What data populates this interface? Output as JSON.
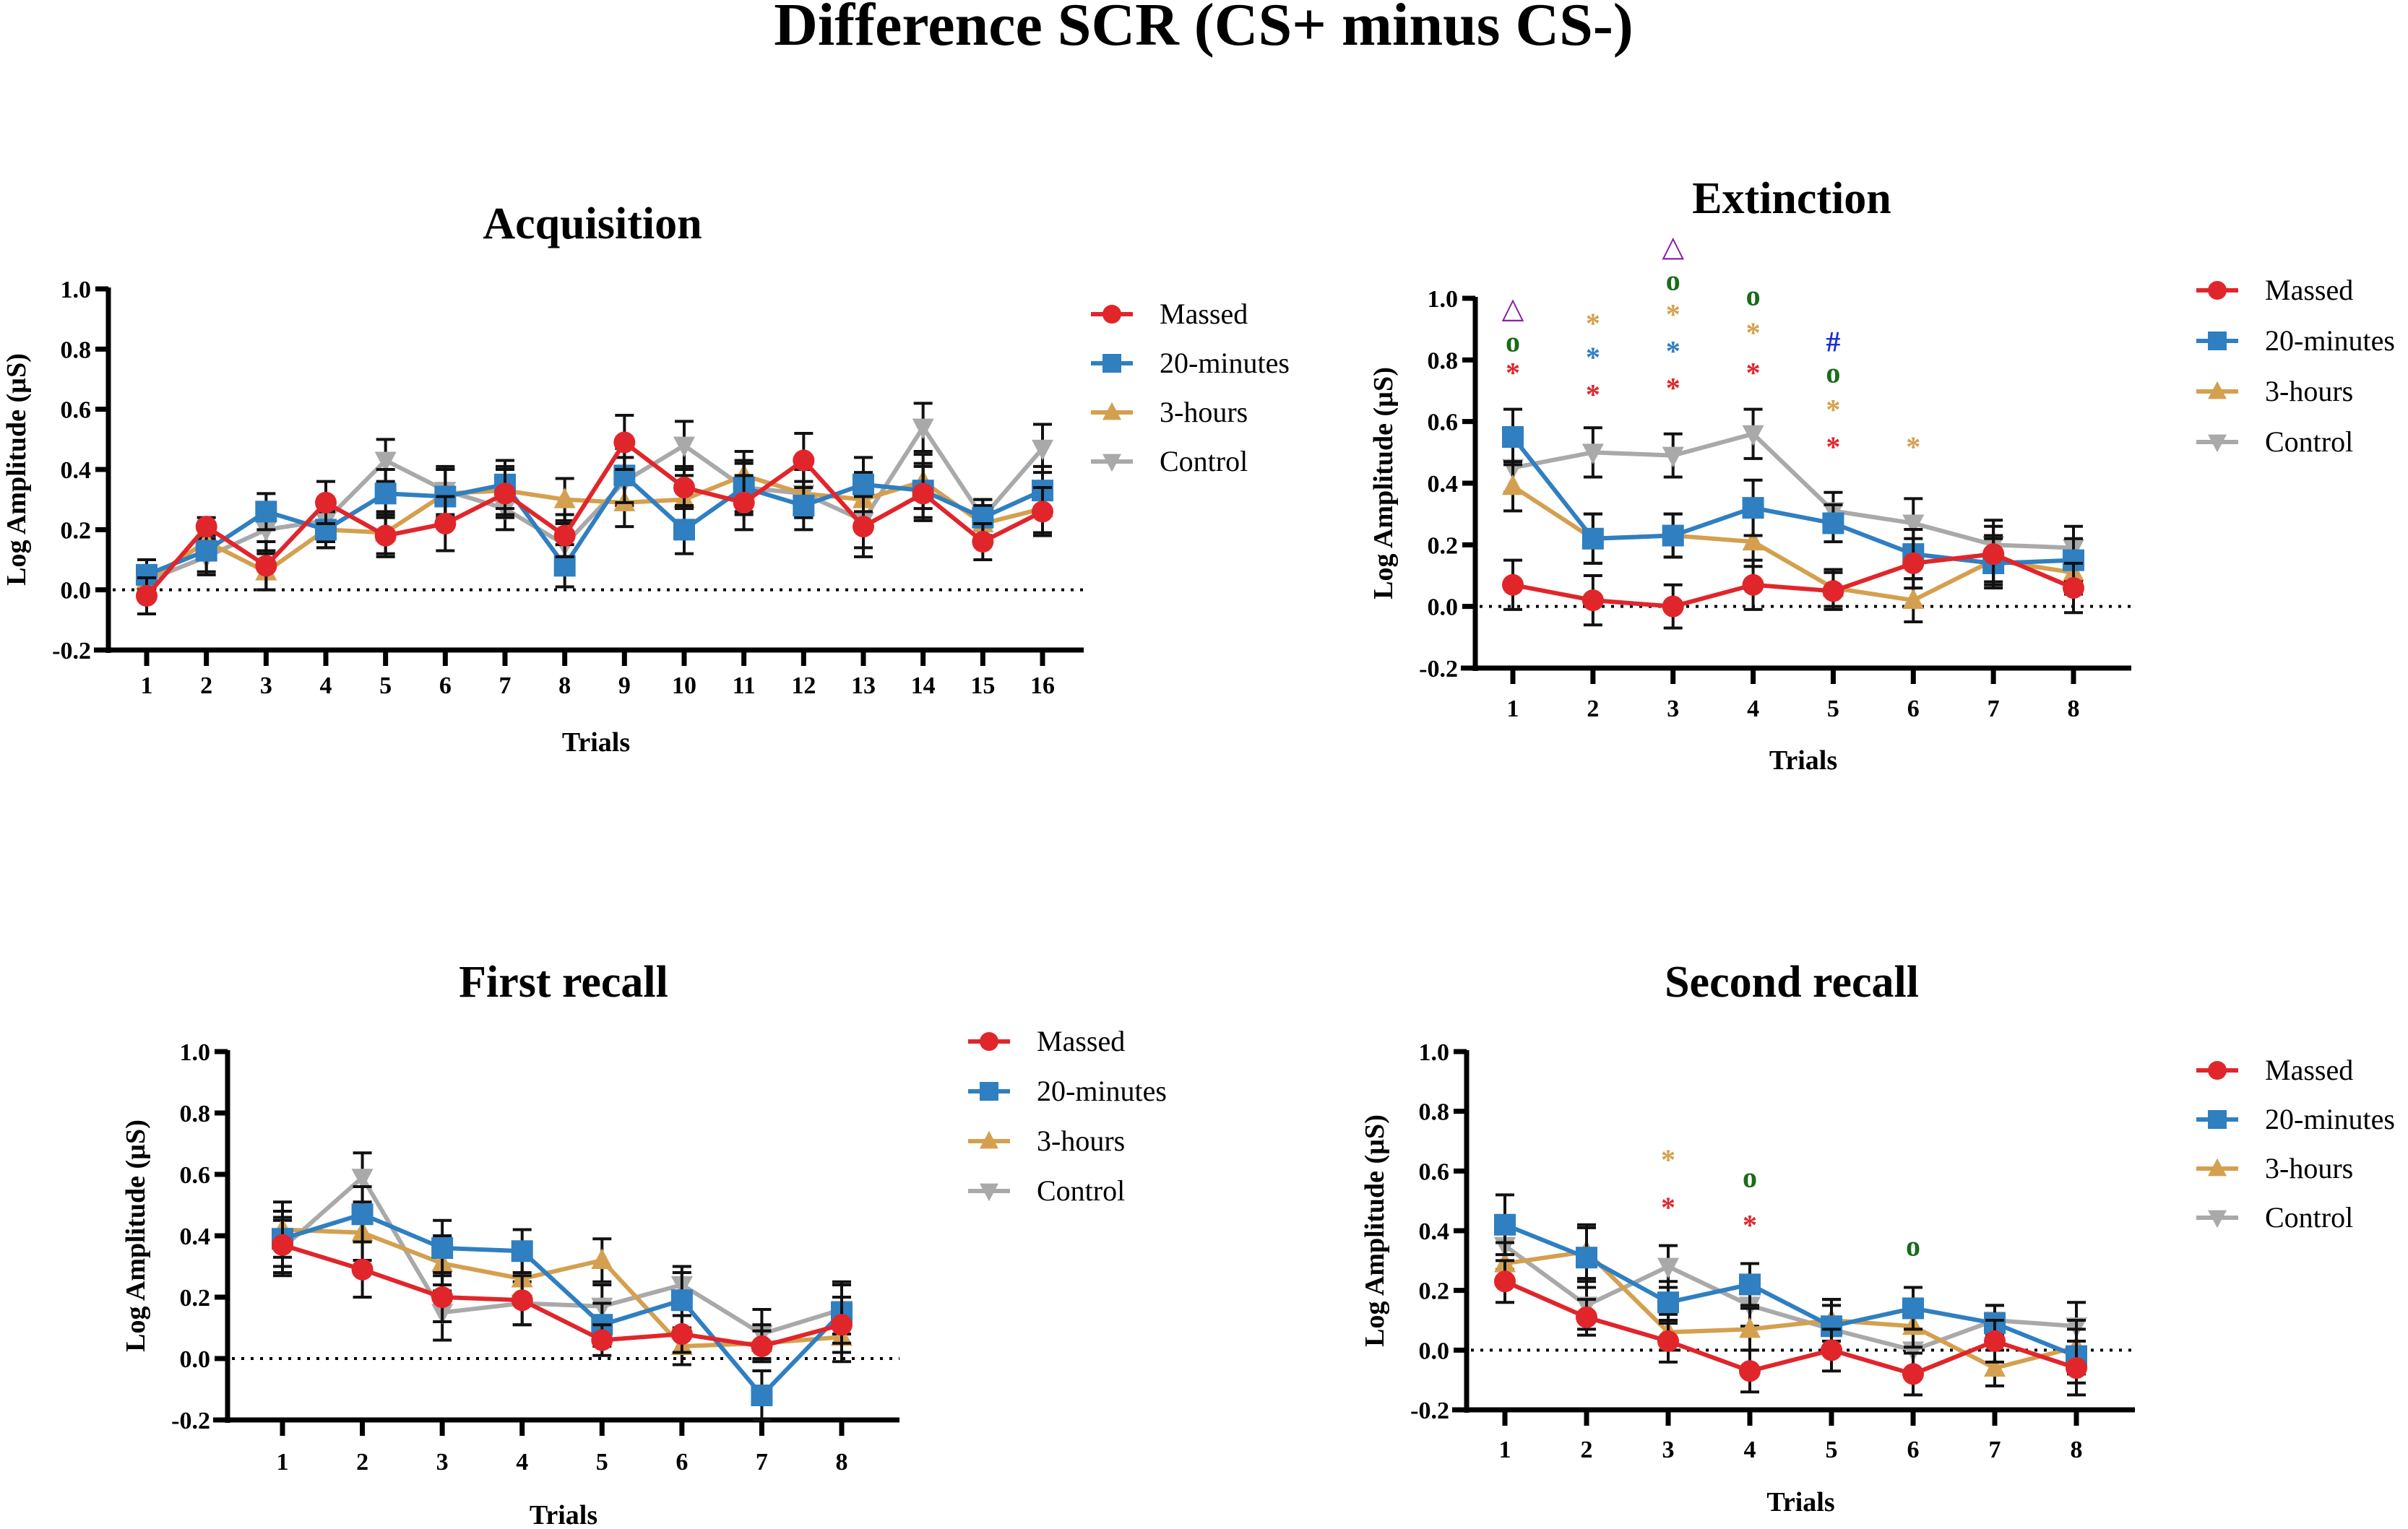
{
  "figure": {
    "title": "Difference SCR (CS+ minus CS-)"
  },
  "legend": {
    "entries": [
      {
        "name": "Massed",
        "color": "#e0262b",
        "marker": "circle"
      },
      {
        "name": "20-minutes",
        "color": "#2f7fc1",
        "marker": "square"
      },
      {
        "name": "3-hours",
        "color": "#d4a04f",
        "marker": "triangle-up"
      },
      {
        "name": "Control",
        "color": "#a9a9a9",
        "marker": "triangle-down"
      }
    ]
  },
  "chart_data": [
    {
      "id": "acquisition",
      "type": "line",
      "title": "Acquisition",
      "xlabel": "Trials",
      "ylabel": "Log Amplitude (µS)",
      "ylim": [
        -0.2,
        1.0
      ],
      "yticks": [
        "-0.2",
        "0.0",
        "0.2",
        "0.4",
        "0.6",
        "0.8",
        "1.0"
      ],
      "x": [
        "1",
        "2",
        "3",
        "4",
        "5",
        "6",
        "7",
        "8",
        "9",
        "10",
        "11",
        "12",
        "13",
        "14",
        "15",
        "16"
      ],
      "reference_line": 0.0,
      "legend_position": "right",
      "series": [
        {
          "name": "Massed",
          "values": [
            -0.02,
            0.21,
            0.08,
            0.29,
            0.18,
            0.22,
            0.32,
            0.18,
            0.49,
            0.34,
            0.29,
            0.43,
            0.21,
            0.32,
            0.16,
            0.26
          ],
          "errors": [
            0.06,
            0.03,
            0.08,
            0.07,
            0.07,
            0.09,
            0.08,
            0.07,
            0.09,
            0.07,
            0.09,
            0.09,
            0.1,
            0.09,
            0.06,
            0.08
          ]
        },
        {
          "name": "20-minutes",
          "values": [
            0.05,
            0.13,
            0.26,
            0.2,
            0.32,
            0.31,
            0.35,
            0.08,
            0.38,
            0.2,
            0.34,
            0.28,
            0.35,
            0.33,
            0.24,
            0.33
          ],
          "errors": [
            0.05,
            0.07,
            0.06,
            0.06,
            0.08,
            0.09,
            0.08,
            0.07,
            0.09,
            0.08,
            0.09,
            0.08,
            0.09,
            0.09,
            0.06,
            0.08
          ]
        },
        {
          "name": "3-hours",
          "values": [
            0.03,
            0.16,
            0.06,
            0.2,
            0.19,
            0.32,
            0.33,
            0.3,
            0.29,
            0.3,
            0.38,
            0.32,
            0.3,
            0.36,
            0.22,
            0.27
          ],
          "errors": [
            0.05,
            0.06,
            0.06,
            0.06,
            0.07,
            0.08,
            0.08,
            0.07,
            0.08,
            0.08,
            0.08,
            0.08,
            0.09,
            0.09,
            0.06,
            0.08
          ]
        },
        {
          "name": "Control",
          "values": [
            0.03,
            0.11,
            0.2,
            0.23,
            0.43,
            0.33,
            0.27,
            0.15,
            0.36,
            0.48,
            0.34,
            0.32,
            0.23,
            0.54,
            0.24,
            0.47
          ],
          "errors": [
            0.05,
            0.06,
            0.07,
            0.07,
            0.07,
            0.08,
            0.07,
            0.07,
            0.08,
            0.08,
            0.08,
            0.08,
            0.09,
            0.08,
            0.06,
            0.08
          ]
        }
      ],
      "annotations": []
    },
    {
      "id": "extinction",
      "type": "line",
      "title": "Extinction",
      "xlabel": "Trials",
      "ylabel": "Log Amplitude (µS)",
      "ylim": [
        -0.2,
        1.0
      ],
      "yticks": [
        "-0.2",
        "0.0",
        "0.2",
        "0.4",
        "0.6",
        "0.8",
        "1.0"
      ],
      "x": [
        "1",
        "2",
        "3",
        "4",
        "5",
        "6",
        "7",
        "8"
      ],
      "reference_line": 0.0,
      "legend_position": "right",
      "series": [
        {
          "name": "Massed",
          "values": [
            0.07,
            0.02,
            0.0,
            0.07,
            0.05,
            0.14,
            0.17,
            0.06
          ],
          "errors": [
            0.08,
            0.08,
            0.07,
            0.08,
            0.06,
            0.08,
            0.09,
            0.08
          ]
        },
        {
          "name": "20-minutes",
          "values": [
            0.55,
            0.22,
            0.23,
            0.32,
            0.27,
            0.17,
            0.14,
            0.15
          ],
          "errors": [
            0.09,
            0.08,
            0.07,
            0.09,
            0.06,
            0.08,
            0.08,
            0.07
          ]
        },
        {
          "name": "3-hours",
          "values": [
            0.39,
            0.22,
            0.23,
            0.21,
            0.06,
            0.02,
            0.15,
            0.11
          ],
          "errors": [
            0.08,
            0.08,
            0.07,
            0.08,
            0.06,
            0.07,
            0.08,
            0.07
          ]
        },
        {
          "name": "Control",
          "values": [
            0.45,
            0.5,
            0.49,
            0.56,
            0.31,
            0.27,
            0.2,
            0.19
          ],
          "errors": [
            0.08,
            0.08,
            0.07,
            0.08,
            0.06,
            0.08,
            0.08,
            0.07
          ]
        }
      ],
      "annotations": [
        {
          "trial": "1",
          "y": 0.97,
          "symbol": "△",
          "color": "#8b1fa9"
        },
        {
          "trial": "1",
          "y": 0.86,
          "symbol": "o",
          "color": "#1a6b1a"
        },
        {
          "trial": "1",
          "y": 0.76,
          "symbol": "*",
          "color": "#e0262b"
        },
        {
          "trial": "2",
          "y": 0.92,
          "symbol": "*",
          "color": "#d4a04f"
        },
        {
          "trial": "2",
          "y": 0.81,
          "symbol": "*",
          "color": "#2f7fc1"
        },
        {
          "trial": "2",
          "y": 0.69,
          "symbol": "*",
          "color": "#e0262b"
        },
        {
          "trial": "3",
          "y": 1.17,
          "symbol": "△",
          "color": "#8b1fa9"
        },
        {
          "trial": "3",
          "y": 1.06,
          "symbol": "o",
          "color": "#1a6b1a"
        },
        {
          "trial": "3",
          "y": 0.95,
          "symbol": "*",
          "color": "#d4a04f"
        },
        {
          "trial": "3",
          "y": 0.83,
          "symbol": "*",
          "color": "#2f7fc1"
        },
        {
          "trial": "3",
          "y": 0.71,
          "symbol": "*",
          "color": "#e0262b"
        },
        {
          "trial": "4",
          "y": 1.01,
          "symbol": "o",
          "color": "#1a6b1a"
        },
        {
          "trial": "4",
          "y": 0.89,
          "symbol": "*",
          "color": "#d4a04f"
        },
        {
          "trial": "4",
          "y": 0.76,
          "symbol": "*",
          "color": "#e0262b"
        },
        {
          "trial": "5",
          "y": 0.86,
          "symbol": "#",
          "color": "#1a2fd6"
        },
        {
          "trial": "5",
          "y": 0.76,
          "symbol": "o",
          "color": "#1a6b1a"
        },
        {
          "trial": "5",
          "y": 0.64,
          "symbol": "*",
          "color": "#d4a04f"
        },
        {
          "trial": "5",
          "y": 0.52,
          "symbol": "*",
          "color": "#e0262b"
        },
        {
          "trial": "6",
          "y": 0.52,
          "symbol": "*",
          "color": "#d4a04f"
        }
      ]
    },
    {
      "id": "first-recall",
      "type": "line",
      "title": "First recall",
      "xlabel": "Trials",
      "ylabel": "Log Amplitude (µS)",
      "ylim": [
        -0.2,
        1.0
      ],
      "yticks": [
        "-0.2",
        "0.0",
        "0.2",
        "0.4",
        "0.6",
        "0.8",
        "1.0"
      ],
      "x": [
        "1",
        "2",
        "3",
        "4",
        "5",
        "6",
        "7",
        "8"
      ],
      "reference_line": 0.0,
      "legend_position": "right",
      "series": [
        {
          "name": "Massed",
          "values": [
            0.37,
            0.29,
            0.2,
            0.19,
            0.06,
            0.08,
            0.04,
            0.11
          ],
          "errors": [
            0.09,
            0.09,
            0.08,
            0.08,
            0.05,
            0.06,
            0.05,
            0.09
          ]
        },
        {
          "name": "20-minutes",
          "values": [
            0.39,
            0.47,
            0.36,
            0.35,
            0.11,
            0.19,
            -0.12,
            0.15
          ],
          "errors": [
            0.09,
            0.09,
            0.09,
            0.07,
            0.07,
            0.09,
            0.08,
            0.1
          ]
        },
        {
          "name": "3-hours",
          "values": [
            0.42,
            0.41,
            0.31,
            0.26,
            0.32,
            0.04,
            0.05,
            0.07
          ],
          "errors": [
            0.09,
            0.09,
            0.09,
            0.08,
            0.07,
            0.06,
            0.06,
            0.08
          ]
        },
        {
          "name": "Control",
          "values": [
            0.36,
            0.59,
            0.15,
            0.18,
            0.17,
            0.24,
            0.08,
            0.16
          ],
          "errors": [
            0.09,
            0.08,
            0.09,
            0.07,
            0.07,
            0.06,
            0.08,
            0.08
          ]
        }
      ],
      "annotations": []
    },
    {
      "id": "second-recall",
      "type": "line",
      "title": "Second recall",
      "xlabel": "Trials",
      "ylabel": "Log Amplitude (µS)",
      "ylim": [
        -0.2,
        1.0
      ],
      "yticks": [
        "-0.2",
        "0.0",
        "0.2",
        "0.4",
        "0.6",
        "0.8",
        "1.0"
      ],
      "x": [
        "1",
        "2",
        "3",
        "4",
        "5",
        "6",
        "7",
        "8"
      ],
      "reference_line": 0.0,
      "legend_position": "right",
      "series": [
        {
          "name": "Massed",
          "values": [
            0.23,
            0.11,
            0.03,
            -0.07,
            0.0,
            -0.08,
            0.03,
            -0.06
          ],
          "errors": [
            0.07,
            0.06,
            0.07,
            0.07,
            0.07,
            0.07,
            0.07,
            0.09
          ]
        },
        {
          "name": "20-minutes",
          "values": [
            0.42,
            0.31,
            0.16,
            0.22,
            0.08,
            0.14,
            0.09,
            -0.02
          ],
          "errors": [
            0.1,
            0.1,
            0.07,
            0.07,
            0.09,
            0.07,
            0.06,
            0.09
          ]
        },
        {
          "name": "3-hours",
          "values": [
            0.29,
            0.33,
            0.06,
            0.07,
            0.1,
            0.08,
            -0.06,
            0.01
          ],
          "errors": [
            0.07,
            0.09,
            0.06,
            0.07,
            0.07,
            0.07,
            0.06,
            0.09
          ]
        },
        {
          "name": "Control",
          "values": [
            0.35,
            0.15,
            0.28,
            0.15,
            0.07,
            0.0,
            0.1,
            0.08
          ],
          "errors": [
            0.08,
            0.08,
            0.07,
            0.07,
            0.08,
            0.07,
            0.05,
            0.08
          ]
        }
      ],
      "annotations": [
        {
          "trial": "3",
          "y": 0.64,
          "symbol": "*",
          "color": "#d4a04f"
        },
        {
          "trial": "3",
          "y": 0.48,
          "symbol": "*",
          "color": "#e0262b"
        },
        {
          "trial": "4",
          "y": 0.58,
          "symbol": "o",
          "color": "#1a6b1a"
        },
        {
          "trial": "4",
          "y": 0.42,
          "symbol": "*",
          "color": "#e0262b"
        },
        {
          "trial": "6",
          "y": 0.35,
          "symbol": "o",
          "color": "#1a6b1a"
        }
      ]
    }
  ]
}
